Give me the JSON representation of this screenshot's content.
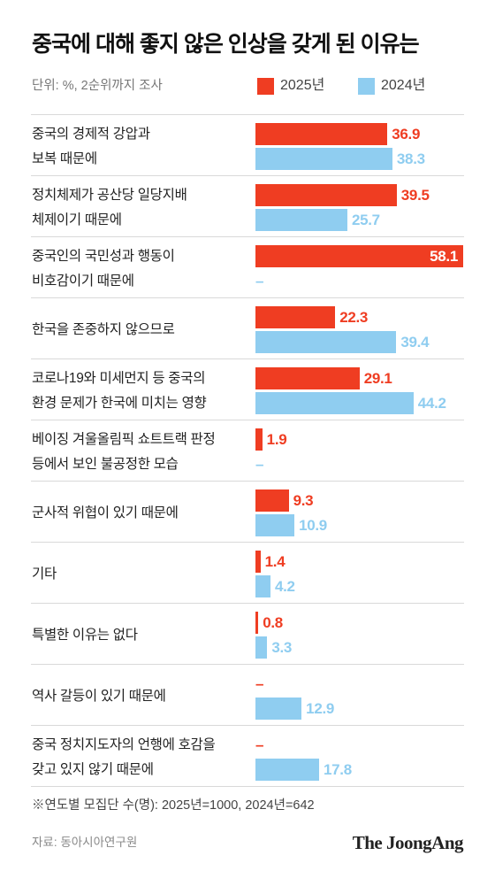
{
  "chart_data": {
    "type": "bar",
    "orientation": "horizontal",
    "title": "중국에 대해 좋지 않은 인상을 갖게 된 이유는",
    "subtitle": "단위: %, 2순위까지 조사",
    "categories": [
      "중국의 경제적 강압과\n보복 때문에",
      "정치체제가 공산당 일당지배\n체제이기 때문에",
      "중국인의 국민성과 행동이\n비호감이기 때문에",
      "한국을 존중하지 않으므로",
      "코로나19와 미세먼지 등 중국의\n환경 문제가 한국에 미치는 영향",
      "베이징 겨울올림픽 쇼트트랙 판정\n등에서 보인 불공정한 모습",
      "군사적 위협이 있기 때문에",
      "기타",
      "특별한 이유는 없다",
      "역사 갈등이 있기 때문에",
      "중국 정치지도자의 언행에 호감을\n갖고 있지 않기 때문에"
    ],
    "series": [
      {
        "name": "2025년",
        "color": "#ef3d22",
        "values": [
          36.9,
          39.5,
          58.1,
          22.3,
          29.1,
          1.9,
          9.3,
          1.4,
          0.8,
          null,
          null
        ]
      },
      {
        "name": "2024년",
        "color": "#8fcdf0",
        "values": [
          38.3,
          25.7,
          null,
          39.4,
          44.2,
          null,
          10.9,
          4.2,
          3.3,
          12.9,
          17.8
        ]
      }
    ],
    "missing_label": "–",
    "legend": "top-right",
    "grid": false,
    "value_labels": true
  },
  "footnote": "※연도별 모집단 수(명): 2025년=1000, 2024년=642",
  "source": "자료: 동아시아연구원",
  "logo": "The JoongAng"
}
